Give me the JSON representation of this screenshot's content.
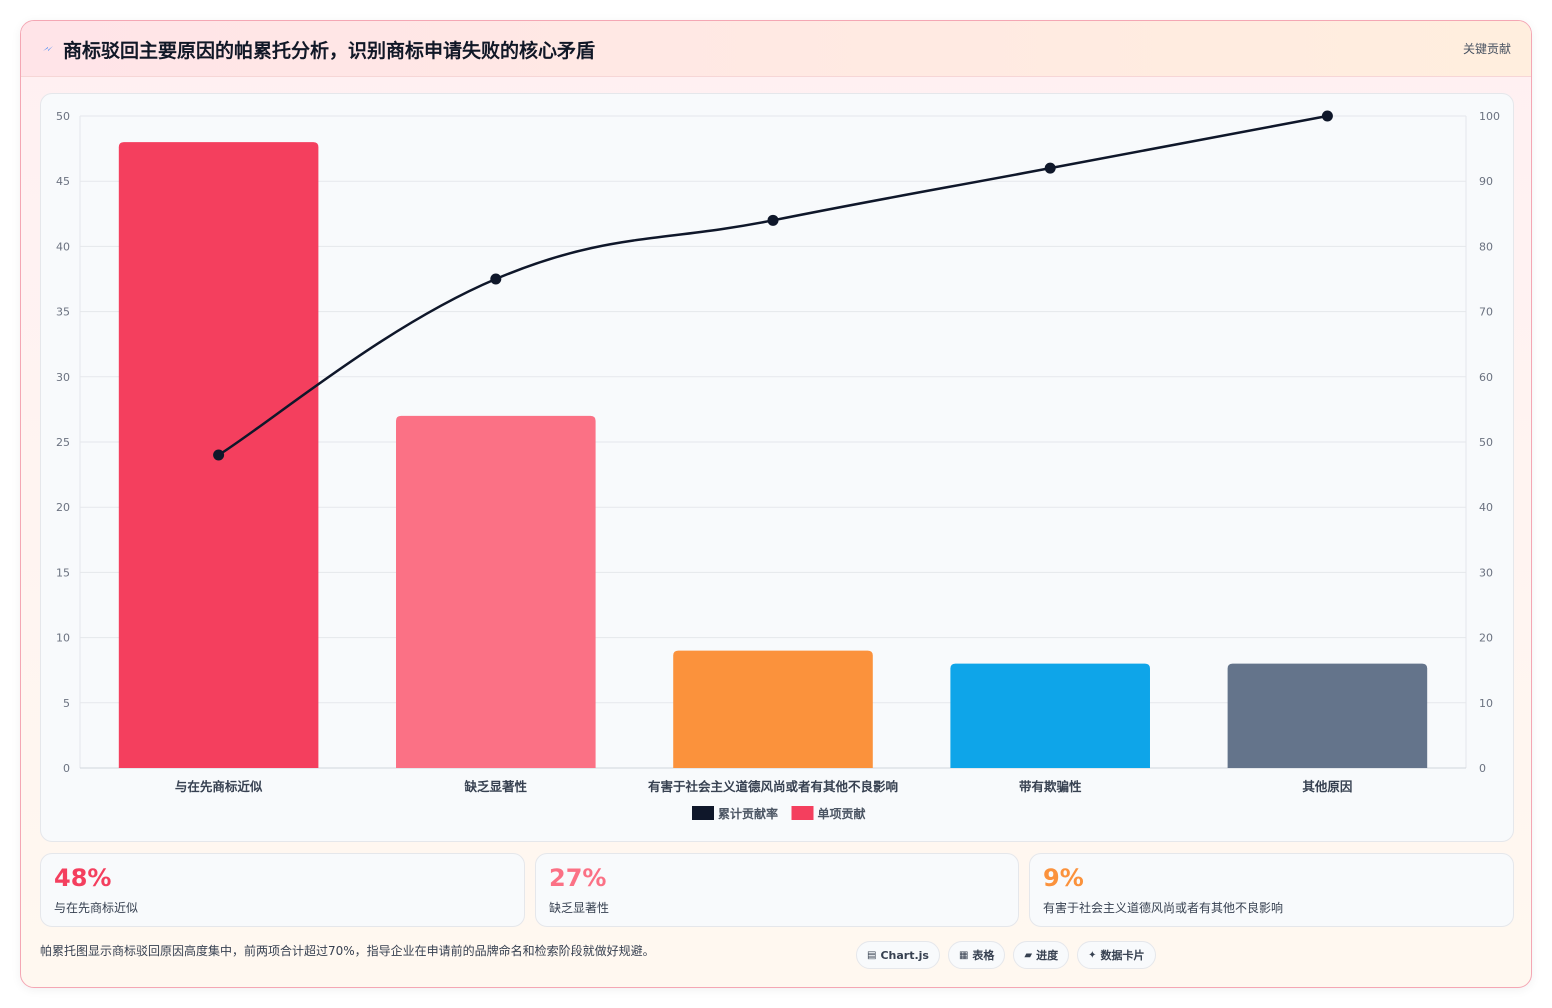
{
  "header": {
    "title": "商标驳回主要原因的帕累托分析，识别商标申请失败的核心矛盾",
    "badge": "关键贡献"
  },
  "chart_data": {
    "type": "bar",
    "categories": [
      "与在先商标近似",
      "缺乏显著性",
      "有害于社会主义道德风尚或者有其他不良影响",
      "带有欺骗性",
      "其他原因"
    ],
    "series": [
      {
        "name": "单项贡献",
        "type": "bar",
        "axis": "left",
        "values": [
          48,
          27,
          9,
          8,
          8
        ],
        "colors": [
          "#f43f5e",
          "#fb7185",
          "#fb923c",
          "#0ea5e9",
          "#64748b"
        ]
      },
      {
        "name": "累计贡献率",
        "type": "line",
        "axis": "right",
        "values": [
          48,
          75,
          84,
          92,
          100
        ],
        "color": "#0f172a"
      }
    ],
    "ylim": [
      0,
      50
    ],
    "y_ticks": [
      0,
      5,
      10,
      15,
      20,
      25,
      30,
      35,
      40,
      45,
      50
    ],
    "y2lim": [
      0,
      100
    ],
    "y2_ticks": [
      0,
      10,
      20,
      30,
      40,
      50,
      60,
      70,
      80,
      90,
      100
    ],
    "legend": [
      {
        "label": "累计贡献率",
        "color": "#0f172a"
      },
      {
        "label": "单项贡献",
        "color": "#f43f5e"
      }
    ],
    "legend_position": "bottom",
    "grid": true
  },
  "kpis": [
    {
      "value": "48%",
      "label": "与在先商标近似",
      "color": "#f43f5e"
    },
    {
      "value": "27%",
      "label": "缺乏显著性",
      "color": "#fb7185"
    },
    {
      "value": "9%",
      "label": "有害于社会主义道德风尚或者有其他不良影响",
      "color": "#fb923c"
    }
  ],
  "footnote": "帕累托图显示商标驳回原因高度集中，前两项合计超过70%，指导企业在申请前的品牌命名和检索阶段就做好规避。",
  "pills": [
    {
      "icon": "chart-icon",
      "glyph": "▤",
      "label": "Chart.js"
    },
    {
      "icon": "table-icon",
      "glyph": "▦",
      "label": "表格"
    },
    {
      "icon": "progress-icon",
      "glyph": "▰",
      "label": "进度"
    },
    {
      "icon": "sparkle-icon",
      "glyph": "✦",
      "label": "数据卡片"
    }
  ]
}
